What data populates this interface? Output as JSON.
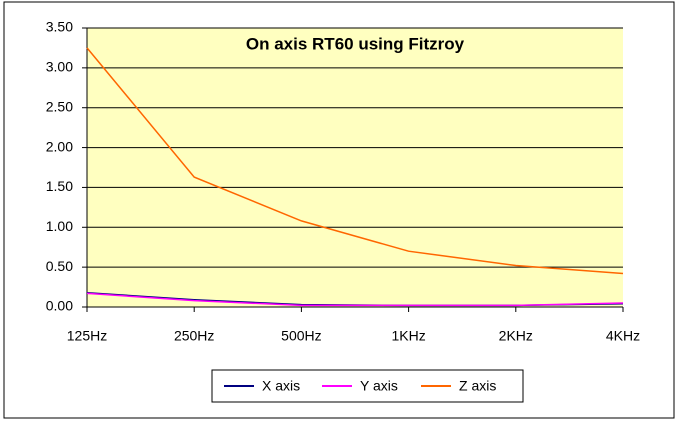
{
  "chart_data": {
    "type": "line",
    "title": "On axis RT60 using Fitzroy",
    "categories": [
      "125Hz",
      "250Hz",
      "500Hz",
      "1KHz",
      "2KHz",
      "4KHz"
    ],
    "series": [
      {
        "name": "X axis",
        "color": "#000080",
        "values": [
          0.18,
          0.09,
          0.03,
          0.02,
          0.02,
          0.04
        ]
      },
      {
        "name": "Y axis",
        "color": "#ff00ff",
        "values": [
          0.17,
          0.08,
          0.02,
          0.02,
          0.02,
          0.05
        ]
      },
      {
        "name": "Z axis",
        "color": "#ff6600",
        "values": [
          3.25,
          1.63,
          1.08,
          0.7,
          0.52,
          0.42
        ]
      }
    ],
    "ylim": [
      0,
      3.5
    ],
    "yticks": [
      {
        "value": 0,
        "label": "0.00"
      },
      {
        "value": 0.5,
        "label": "0.50"
      },
      {
        "value": 1,
        "label": "1.00"
      },
      {
        "value": 1.5,
        "label": "1.50"
      },
      {
        "value": 2,
        "label": "2.00"
      },
      {
        "value": 2.5,
        "label": "2.50"
      },
      {
        "value": 3,
        "label": "3.00"
      },
      {
        "value": 3.5,
        "label": "3.50"
      }
    ],
    "grid": true,
    "legend": "bottom"
  }
}
